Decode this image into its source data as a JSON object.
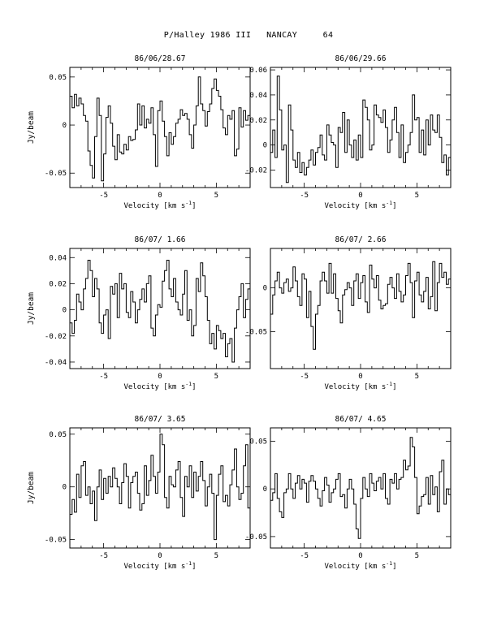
{
  "figure": {
    "title": "P/Halley 1986 III   NANCAY     64"
  },
  "colors": {
    "ink": "#000000",
    "background": "#ffffff"
  },
  "chart_data": [
    {
      "type": "line",
      "step": true,
      "title": "86/06/28.67",
      "xlabel": "Velocity [km s",
      "xlabel_sup": "-1",
      "xlabel_end": "]",
      "ylabel": "Jy/beam",
      "xlim": [
        -8,
        8
      ],
      "ylim": [
        -0.065,
        0.06
      ],
      "xticks": [
        -5,
        0,
        5
      ],
      "xtick_labels": [
        "-5",
        "0",
        "5"
      ],
      "yticks": [
        -0.05,
        0,
        0.05
      ],
      "ytick_labels": [
        "-0.05",
        "0",
        "0.05"
      ],
      "grid": false,
      "x": [
        -8.0,
        -7.8,
        -7.6,
        -7.4,
        -7.2,
        -7.0,
        -6.8,
        -6.6,
        -6.4,
        -6.2,
        -6.0,
        -5.8,
        -5.6,
        -5.4,
        -5.2,
        -5.0,
        -4.8,
        -4.6,
        -4.4,
        -4.2,
        -4.0,
        -3.8,
        -3.6,
        -3.4,
        -3.2,
        -3.0,
        -2.8,
        -2.6,
        -2.4,
        -2.2,
        -2.0,
        -1.8,
        -1.6,
        -1.4,
        -1.2,
        -1.0,
        -0.8,
        -0.6,
        -0.4,
        -0.2,
        0.0,
        0.2,
        0.4,
        0.6,
        0.8,
        1.0,
        1.2,
        1.4,
        1.6,
        1.8,
        2.0,
        2.2,
        2.4,
        2.6,
        2.8,
        3.0,
        3.2,
        3.4,
        3.6,
        3.8,
        4.0,
        4.2,
        4.4,
        4.6,
        4.8,
        5.0,
        5.2,
        5.4,
        5.6,
        5.8,
        6.0,
        6.2,
        6.4,
        6.6,
        6.8,
        7.0,
        7.2,
        7.4,
        7.6,
        7.8
      ],
      "values": [
        0.03,
        0.018,
        0.032,
        0.02,
        0.028,
        0.022,
        0.01,
        0.004,
        -0.027,
        -0.042,
        -0.055,
        -0.012,
        0.028,
        0.01,
        -0.058,
        -0.03,
        0.008,
        0.02,
        0.002,
        -0.022,
        -0.036,
        -0.01,
        -0.028,
        -0.03,
        -0.02,
        -0.026,
        -0.012,
        -0.016,
        -0.015,
        -0.005,
        0.022,
        0.0,
        0.02,
        -0.003,
        0.006,
        0.002,
        0.018,
        -0.01,
        -0.043,
        0.015,
        0.025,
        0.004,
        -0.012,
        -0.032,
        -0.008,
        -0.02,
        -0.012,
        0.002,
        0.006,
        0.016,
        0.01,
        0.012,
        0.006,
        -0.01,
        -0.024,
        0.0,
        0.02,
        0.05,
        0.022,
        0.015,
        -0.001,
        0.014,
        0.022,
        0.038,
        0.048,
        0.036,
        0.03,
        0.016,
        -0.003,
        -0.01,
        0.01,
        0.006,
        0.015,
        -0.032,
        -0.025,
        0.018,
        -0.002,
        0.015,
        0.005,
        0.01
      ]
    },
    {
      "type": "line",
      "step": true,
      "title": "86/06/29.66",
      "xlabel": "Velocity [km s",
      "xlabel_sup": "-1",
      "xlabel_end": "]",
      "ylabel": "",
      "xlim": [
        -8,
        8
      ],
      "ylim": [
        -0.034,
        0.062
      ],
      "xticks": [
        -5,
        0,
        5
      ],
      "xtick_labels": [
        "-5",
        "0",
        "5"
      ],
      "yticks": [
        -0.02,
        0,
        0.02,
        0.04,
        0.06
      ],
      "ytick_labels": [
        "-0.02",
        "0",
        "0.02",
        "0.04",
        "0.06"
      ],
      "grid": false,
      "x": [
        -8.0,
        -7.8,
        -7.6,
        -7.4,
        -7.2,
        -7.0,
        -6.8,
        -6.6,
        -6.4,
        -6.2,
        -6.0,
        -5.8,
        -5.6,
        -5.4,
        -5.2,
        -5.0,
        -4.8,
        -4.6,
        -4.4,
        -4.2,
        -4.0,
        -3.8,
        -3.6,
        -3.4,
        -3.2,
        -3.0,
        -2.8,
        -2.6,
        -2.4,
        -2.2,
        -2.0,
        -1.8,
        -1.6,
        -1.4,
        -1.2,
        -1.0,
        -0.8,
        -0.6,
        -0.4,
        -0.2,
        0.0,
        0.2,
        0.4,
        0.6,
        0.8,
        1.0,
        1.2,
        1.4,
        1.6,
        1.8,
        2.0,
        2.2,
        2.4,
        2.6,
        2.8,
        3.0,
        3.2,
        3.4,
        3.6,
        3.8,
        4.0,
        4.2,
        4.4,
        4.6,
        4.8,
        5.0,
        5.2,
        5.4,
        5.6,
        5.8,
        6.0,
        6.2,
        6.4,
        6.6,
        6.8,
        7.0,
        7.2,
        7.4,
        7.6,
        7.8
      ],
      "values": [
        -0.006,
        0.012,
        -0.01,
        0.055,
        0.028,
        -0.004,
        0.0,
        -0.03,
        0.032,
        0.012,
        -0.012,
        -0.018,
        -0.006,
        -0.022,
        -0.014,
        -0.024,
        -0.018,
        -0.012,
        -0.004,
        -0.016,
        -0.006,
        -0.002,
        0.008,
        -0.008,
        -0.012,
        0.016,
        0.008,
        0.002,
        0.0,
        -0.018,
        0.014,
        0.01,
        0.026,
        -0.006,
        0.02,
        0.0,
        -0.01,
        0.004,
        -0.012,
        0.008,
        -0.01,
        0.036,
        0.03,
        0.02,
        -0.004,
        0.0,
        0.032,
        0.024,
        0.022,
        0.018,
        0.028,
        0.014,
        -0.006,
        0.004,
        0.02,
        0.03,
        0.01,
        -0.01,
        0.016,
        -0.014,
        -0.006,
        0.0,
        0.01,
        0.04,
        0.02,
        0.022,
        -0.006,
        0.012,
        -0.008,
        0.02,
        0.0,
        0.024,
        0.012,
        0.01,
        0.024,
        0.006,
        -0.014,
        -0.008,
        -0.024,
        -0.01
      ]
    },
    {
      "type": "line",
      "step": true,
      "title": "86/07/ 1.66",
      "xlabel": "Velocity [km s",
      "xlabel_sup": "-1",
      "xlabel_end": "]",
      "ylabel": "Jy/beam",
      "xlim": [
        -8,
        8
      ],
      "ylim": [
        -0.045,
        0.047
      ],
      "xticks": [
        -5,
        0,
        5
      ],
      "xtick_labels": [
        "-5",
        "0",
        "5"
      ],
      "yticks": [
        -0.04,
        -0.02,
        0,
        0.02,
        0.04
      ],
      "ytick_labels": [
        "-0.04",
        "-0.02",
        "0",
        "0.02",
        "0.04"
      ],
      "grid": false,
      "x": [
        -8.0,
        -7.8,
        -7.6,
        -7.4,
        -7.2,
        -7.0,
        -6.8,
        -6.6,
        -6.4,
        -6.2,
        -6.0,
        -5.8,
        -5.6,
        -5.4,
        -5.2,
        -5.0,
        -4.8,
        -4.6,
        -4.4,
        -4.2,
        -4.0,
        -3.8,
        -3.6,
        -3.4,
        -3.2,
        -3.0,
        -2.8,
        -2.6,
        -2.4,
        -2.2,
        -2.0,
        -1.8,
        -1.6,
        -1.4,
        -1.2,
        -1.0,
        -0.8,
        -0.6,
        -0.4,
        -0.2,
        0.0,
        0.2,
        0.4,
        0.6,
        0.8,
        1.0,
        1.2,
        1.4,
        1.6,
        1.8,
        2.0,
        2.2,
        2.4,
        2.6,
        2.8,
        3.0,
        3.2,
        3.4,
        3.6,
        3.8,
        4.0,
        4.2,
        4.4,
        4.6,
        4.8,
        5.0,
        5.2,
        5.4,
        5.6,
        5.8,
        6.0,
        6.2,
        6.4,
        6.6,
        6.8,
        7.0,
        7.2,
        7.4,
        7.6,
        7.8
      ],
      "values": [
        -0.01,
        -0.018,
        -0.008,
        0.012,
        0.006,
        0.0,
        0.016,
        0.024,
        0.038,
        0.03,
        0.01,
        0.024,
        0.016,
        -0.01,
        -0.018,
        -0.004,
        0.0,
        -0.022,
        0.018,
        0.012,
        0.02,
        -0.006,
        0.028,
        0.016,
        0.02,
        -0.002,
        -0.006,
        0.014,
        0.006,
        -0.01,
        0.0,
        0.008,
        0.016,
        0.006,
        0.02,
        0.026,
        -0.014,
        -0.02,
        -0.004,
        0.004,
        0.002,
        0.022,
        0.03,
        0.038,
        0.016,
        0.01,
        0.024,
        0.006,
        0.0,
        -0.004,
        0.012,
        0.03,
        -0.008,
        0.0,
        -0.02,
        -0.012,
        0.024,
        0.014,
        0.036,
        0.026,
        0.01,
        -0.008,
        -0.026,
        -0.018,
        -0.03,
        -0.012,
        -0.016,
        -0.022,
        -0.018,
        -0.036,
        -0.026,
        -0.022,
        -0.04,
        -0.014,
        0.0,
        0.01,
        0.02,
        -0.006,
        0.008,
        0.016
      ]
    },
    {
      "type": "line",
      "step": true,
      "title": "86/07/ 2.66",
      "xlabel": "Velocity [km s",
      "xlabel_sup": "-1",
      "xlabel_end": "]",
      "ylabel": "",
      "xlim": [
        -8,
        8
      ],
      "ylim": [
        -0.092,
        0.045
      ],
      "xticks": [
        -5,
        0,
        5
      ],
      "xtick_labels": [
        "-5",
        "0",
        "5"
      ],
      "yticks": [
        -0.05,
        0
      ],
      "ytick_labels": [
        "-0.05",
        "0"
      ],
      "grid": false,
      "x": [
        -8.0,
        -7.8,
        -7.6,
        -7.4,
        -7.2,
        -7.0,
        -6.8,
        -6.6,
        -6.4,
        -6.2,
        -6.0,
        -5.8,
        -5.6,
        -5.4,
        -5.2,
        -5.0,
        -4.8,
        -4.6,
        -4.4,
        -4.2,
        -4.0,
        -3.8,
        -3.6,
        -3.4,
        -3.2,
        -3.0,
        -2.8,
        -2.6,
        -2.4,
        -2.2,
        -2.0,
        -1.8,
        -1.6,
        -1.4,
        -1.2,
        -1.0,
        -0.8,
        -0.6,
        -0.4,
        -0.2,
        0.0,
        0.2,
        0.4,
        0.6,
        0.8,
        1.0,
        1.2,
        1.4,
        1.6,
        1.8,
        2.0,
        2.2,
        2.4,
        2.6,
        2.8,
        3.0,
        3.2,
        3.4,
        3.6,
        3.8,
        4.0,
        4.2,
        4.4,
        4.6,
        4.8,
        5.0,
        5.2,
        5.4,
        5.6,
        5.8,
        6.0,
        6.2,
        6.4,
        6.6,
        6.8,
        7.0,
        7.2,
        7.4,
        7.6,
        7.8
      ],
      "values": [
        -0.03,
        -0.008,
        0.008,
        0.018,
        0.0,
        -0.006,
        0.006,
        0.01,
        -0.004,
        0.0,
        0.024,
        0.008,
        -0.01,
        -0.02,
        0.016,
        0.01,
        -0.034,
        -0.004,
        -0.044,
        -0.07,
        -0.03,
        -0.02,
        0.008,
        0.018,
        0.008,
        -0.006,
        0.028,
        -0.006,
        0.016,
        -0.012,
        -0.026,
        -0.04,
        -0.008,
        -0.002,
        0.006,
        0.0,
        -0.02,
        0.008,
        0.016,
        -0.012,
        0.006,
        0.014,
        -0.016,
        -0.028,
        0.026,
        0.01,
        0.0,
        0.014,
        -0.014,
        -0.024,
        -0.02,
        -0.018,
        0.004,
        0.012,
        0.0,
        -0.012,
        0.016,
        -0.004,
        -0.016,
        -0.008,
        0.014,
        0.028,
        0.006,
        -0.034,
        0.008,
        0.018,
        -0.008,
        -0.016,
        -0.004,
        0.012,
        -0.024,
        -0.01,
        0.03,
        -0.026,
        0.006,
        0.028,
        0.012,
        0.018,
        0.004,
        0.01
      ]
    },
    {
      "type": "line",
      "step": true,
      "title": "86/07/ 3.65",
      "xlabel": "Velocity [km s",
      "xlabel_sup": "-1",
      "xlabel_end": "]",
      "ylabel": "Jy/beam",
      "xlim": [
        -8,
        8
      ],
      "ylim": [
        -0.058,
        0.056
      ],
      "xticks": [
        -5,
        0,
        5
      ],
      "xtick_labels": [
        "-5",
        "0",
        "5"
      ],
      "yticks": [
        -0.05,
        0,
        0.05
      ],
      "ytick_labels": [
        "-0.05",
        "0",
        "0.05"
      ],
      "grid": false,
      "x": [
        -8.0,
        -7.8,
        -7.6,
        -7.4,
        -7.2,
        -7.0,
        -6.8,
        -6.6,
        -6.4,
        -6.2,
        -6.0,
        -5.8,
        -5.6,
        -5.4,
        -5.2,
        -5.0,
        -4.8,
        -4.6,
        -4.4,
        -4.2,
        -4.0,
        -3.8,
        -3.6,
        -3.4,
        -3.2,
        -3.0,
        -2.8,
        -2.6,
        -2.4,
        -2.2,
        -2.0,
        -1.8,
        -1.6,
        -1.4,
        -1.2,
        -1.0,
        -0.8,
        -0.6,
        -0.4,
        -0.2,
        0.0,
        0.2,
        0.4,
        0.6,
        0.8,
        1.0,
        1.2,
        1.4,
        1.6,
        1.8,
        2.0,
        2.2,
        2.4,
        2.6,
        2.8,
        3.0,
        3.2,
        3.4,
        3.6,
        3.8,
        4.0,
        4.2,
        4.4,
        4.6,
        4.8,
        5.0,
        5.2,
        5.4,
        5.6,
        5.8,
        6.0,
        6.2,
        6.4,
        6.6,
        6.8,
        7.0,
        7.2,
        7.4,
        7.6,
        7.8
      ],
      "values": [
        -0.026,
        -0.012,
        -0.024,
        0.012,
        -0.01,
        0.02,
        0.024,
        -0.008,
        0.0,
        -0.016,
        -0.004,
        -0.032,
        0.0,
        0.016,
        -0.012,
        0.008,
        -0.006,
        0.01,
        0.0,
        0.018,
        0.008,
        0.0,
        -0.016,
        0.004,
        0.022,
        0.01,
        -0.02,
        0.004,
        0.01,
        0.014,
        -0.006,
        -0.022,
        -0.016,
        0.02,
        -0.008,
        0.006,
        0.03,
        0.01,
        -0.006,
        0.014,
        0.05,
        0.04,
        -0.01,
        -0.02,
        0.01,
        0.002,
        0.0,
        0.016,
        0.024,
        -0.01,
        -0.028,
        0.01,
        0.0,
        0.02,
        -0.01,
        0.014,
        -0.004,
        0.01,
        0.024,
        0.006,
        -0.018,
        0.0,
        0.012,
        -0.006,
        -0.05,
        -0.008,
        0.012,
        0.02,
        -0.014,
        -0.008,
        -0.018,
        0.002,
        0.016,
        0.036,
        0.0,
        -0.012,
        -0.006,
        0.02,
        0.04,
        -0.02
      ]
    },
    {
      "type": "line",
      "step": true,
      "title": "86/07/ 4.65",
      "xlabel": "Velocity [km s",
      "xlabel_sup": "-1",
      "xlabel_end": "]",
      "ylabel": "",
      "xlim": [
        -8,
        8
      ],
      "ylim": [
        -0.062,
        0.064
      ],
      "xticks": [
        -5,
        0,
        5
      ],
      "xtick_labels": [
        "-5",
        "0",
        "5"
      ],
      "yticks": [
        -0.05,
        0,
        0.05
      ],
      "ytick_labels": [
        "-0.05",
        "0",
        "0.05"
      ],
      "grid": false,
      "x": [
        -8.0,
        -7.8,
        -7.6,
        -7.4,
        -7.2,
        -7.0,
        -6.8,
        -6.6,
        -6.4,
        -6.2,
        -6.0,
        -5.8,
        -5.6,
        -5.4,
        -5.2,
        -5.0,
        -4.8,
        -4.6,
        -4.4,
        -4.2,
        -4.0,
        -3.8,
        -3.6,
        -3.4,
        -3.2,
        -3.0,
        -2.8,
        -2.6,
        -2.4,
        -2.2,
        -2.0,
        -1.8,
        -1.6,
        -1.4,
        -1.2,
        -1.0,
        -0.8,
        -0.6,
        -0.4,
        -0.2,
        0.0,
        0.2,
        0.4,
        0.6,
        0.8,
        1.0,
        1.2,
        1.4,
        1.6,
        1.8,
        2.0,
        2.2,
        2.4,
        2.6,
        2.8,
        3.0,
        3.2,
        3.4,
        3.6,
        3.8,
        4.0,
        4.2,
        4.4,
        4.6,
        4.8,
        5.0,
        5.2,
        5.4,
        5.6,
        5.8,
        6.0,
        6.2,
        6.4,
        6.6,
        6.8,
        7.0,
        7.2,
        7.4,
        7.6,
        7.8
      ],
      "values": [
        -0.012,
        -0.004,
        0.016,
        -0.01,
        -0.024,
        -0.03,
        -0.004,
        0.0,
        0.016,
        0.0,
        -0.01,
        0.006,
        0.014,
        0.0,
        0.01,
        0.006,
        -0.014,
        0.008,
        0.014,
        0.008,
        0.0,
        -0.01,
        -0.018,
        -0.002,
        0.012,
        0.004,
        -0.014,
        -0.004,
        0.0,
        0.01,
        0.016,
        -0.008,
        -0.006,
        -0.02,
        0.0,
        0.01,
        0.0,
        -0.016,
        -0.042,
        -0.052,
        -0.01,
        0.012,
        0.0,
        -0.008,
        0.016,
        0.006,
        -0.002,
        0.008,
        0.012,
        0.0,
        0.016,
        -0.01,
        -0.016,
        0.01,
        0.006,
        0.016,
        0.0,
        0.01,
        0.012,
        0.03,
        0.02,
        0.024,
        0.054,
        0.044,
        0.012,
        -0.026,
        -0.018,
        -0.008,
        -0.006,
        0.012,
        -0.016,
        0.014,
        -0.006,
        0.002,
        -0.024,
        0.018,
        0.03,
        -0.016,
        0.0,
        -0.006
      ]
    }
  ]
}
